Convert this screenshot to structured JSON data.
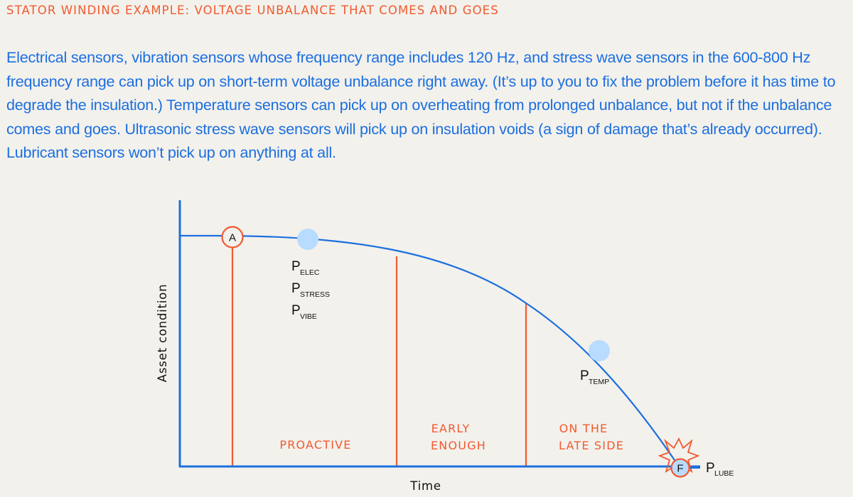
{
  "header": {
    "title": "STATOR WINDING EXAMPLE: VOLTAGE UNBALANCE THAT COMES AND GOES"
  },
  "description": "Electrical sensors, vibration sensors whose frequency range includes 120 Hz, and stress wave sensors in the 600-800 Hz frequency range can pick up on short-term voltage unbalance right away. (It’s up to you to fix the problem before it has time to degrade the insulation.) Temperature sensors can pick up on overheating from prolonged unbalance, but not if the unbalance comes and goes. Ultrasonic stress wave sensors will pick up on insulation voids (a sign of damage that’s already occurred). Lubricant sensors won’t pick up on anything at all.",
  "diagram": {
    "y_axis_label": "Asset condition",
    "x_axis_label": "Time",
    "phases": {
      "proactive": "PROACTIVE",
      "early_line1": "EARLY",
      "early_line2": "ENOUGH",
      "late_line1": "ON THE",
      "late_line2": "LATE SIDE"
    },
    "markers": {
      "a": "A",
      "f": "F"
    },
    "sensor_labels": {
      "elec": {
        "p": "P",
        "sub": "ELEC"
      },
      "stress": {
        "p": "P",
        "sub": "STRESS"
      },
      "vibe": {
        "p": "P",
        "sub": "VIBE"
      },
      "temp": {
        "p": "P",
        "sub": "TEMP"
      },
      "lube": {
        "p": "P",
        "sub": "LUBE"
      }
    },
    "colors": {
      "curve": "#1b6fe0",
      "phase_lines": "#f05a30",
      "axes": "#1b6fe0",
      "detection_points": "#b8dcff",
      "text_accent": "#f05a30"
    }
  }
}
